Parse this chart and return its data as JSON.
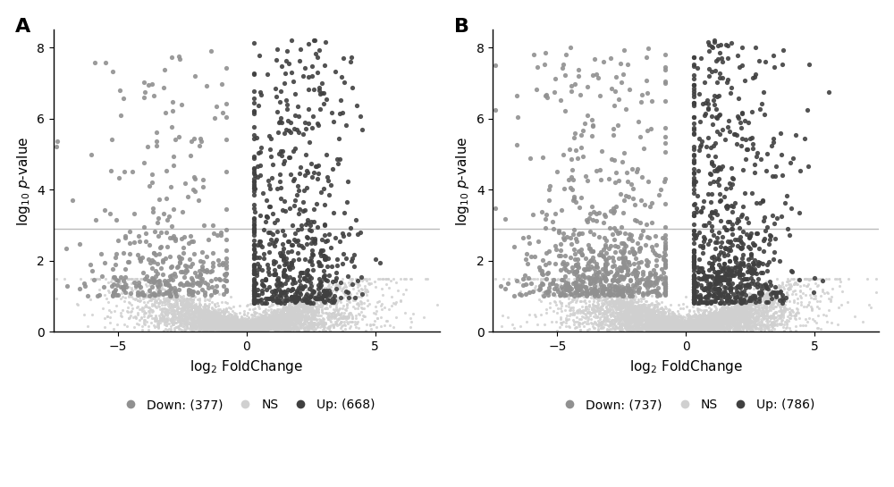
{
  "panel_A": {
    "label": "A",
    "down_count": 377,
    "ns_label": "NS",
    "up_count": 668,
    "threshold_line": 2.9,
    "xlim": [
      -7.5,
      7.5
    ],
    "ylim": [
      0,
      8.5
    ],
    "xticks": [
      -5,
      0,
      5
    ],
    "yticks": [
      0,
      2,
      4,
      6,
      8
    ],
    "color_down": "#909090",
    "color_ns": "#d0d0d0",
    "color_up": "#404040",
    "n_ns": 4500,
    "n_down": 377,
    "n_up": 668,
    "seed_ns": 1001,
    "seed_down": 1002,
    "seed_up": 1003
  },
  "panel_B": {
    "label": "B",
    "down_count": 737,
    "ns_label": "NS",
    "up_count": 786,
    "threshold_line": 2.9,
    "xlim": [
      -7.5,
      7.5
    ],
    "ylim": [
      0,
      8.5
    ],
    "xticks": [
      -5,
      0,
      5
    ],
    "yticks": [
      0,
      2,
      4,
      6,
      8
    ],
    "color_down": "#909090",
    "color_ns": "#d0d0d0",
    "color_up": "#404040",
    "n_ns": 5500,
    "n_down": 737,
    "n_up": 786,
    "seed_ns": 2001,
    "seed_down": 2002,
    "seed_up": 2003
  },
  "figure_bg": "#ffffff",
  "dot_size_sig": 14,
  "dot_size_ns": 5,
  "line_color": "#bbbbbb",
  "line_width": 1.0
}
